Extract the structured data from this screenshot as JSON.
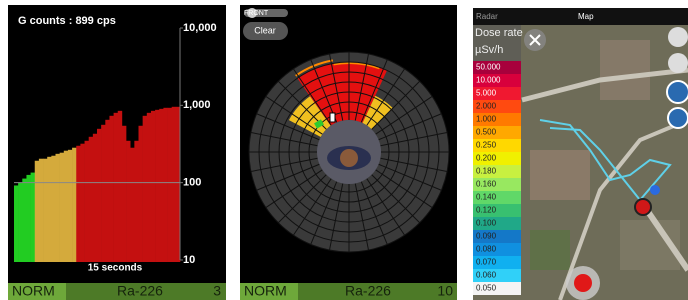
{
  "spectrum": {
    "title": "G counts : 899 cps",
    "x_label": "15 seconds",
    "yscale": "log",
    "ylim": [
      10,
      10000
    ],
    "yticks": [
      {
        "value": 10000,
        "label": "10,000"
      },
      {
        "value": 1000,
        "label": "1,000"
      },
      100,
      10
    ],
    "reference_line": 100,
    "values": [
      92,
      100,
      113,
      126,
      135,
      192,
      204,
      204,
      216,
      223,
      236,
      244,
      259,
      266,
      283,
      300,
      319,
      348,
      392,
      429,
      497,
      560,
      650,
      732,
      800,
      849,
      544,
      348,
      283,
      348,
      544,
      732,
      800,
      849,
      875,
      901,
      929,
      929,
      957,
      957
    ],
    "colors": [
      "#22cc22",
      "#22cc22",
      "#22cc22",
      "#22cc22",
      "#22cc22",
      "#d4aa3c",
      "#d4aa3c",
      "#d4aa3c",
      "#d4aa3c",
      "#d4aa3c",
      "#d4aa3c",
      "#d4aa3c",
      "#d4aa3c",
      "#d4aa3c",
      "#d4aa3c",
      "#c41010",
      "#c41010",
      "#c41010",
      "#c41010",
      "#c41010",
      "#c41010",
      "#c41010",
      "#c41010",
      "#c41010",
      "#c41010",
      "#c41010",
      "#c41010",
      "#c41010",
      "#c41010",
      "#c41010",
      "#c41010",
      "#c41010",
      "#c41010",
      "#c41010",
      "#c41010",
      "#c41010",
      "#c41010",
      "#c41010",
      "#c41010",
      "#c41010"
    ],
    "status": {
      "mode": "NORM",
      "isotope": "Ra-226",
      "count": 3
    }
  },
  "radar": {
    "slider_label": "FRONT",
    "button": "Clear",
    "status": {
      "mode": "NORM",
      "isotope": "Ra-226",
      "count": 10
    }
  },
  "map": {
    "tabs": [
      "Radar",
      "Map"
    ],
    "legend_title": "Dose rate",
    "unit": "µSv/h",
    "scale": [
      {
        "label": "50.000",
        "color": "#a8003c"
      },
      {
        "label": "10.000",
        "color": "#d8003c"
      },
      {
        "label": "5.000",
        "color": "#f01830"
      },
      {
        "label": "2.000",
        "color": "#ff4a10"
      },
      {
        "label": "1.000",
        "color": "#ff7a00"
      },
      {
        "label": "0.500",
        "color": "#ffa800"
      },
      {
        "label": "0.250",
        "color": "#ffd800"
      },
      {
        "label": "0.200",
        "color": "#f0f000"
      },
      {
        "label": "0.180",
        "color": "#c8f040"
      },
      {
        "label": "0.160",
        "color": "#98e860"
      },
      {
        "label": "0.140",
        "color": "#60d868"
      },
      {
        "label": "0.120",
        "color": "#38c070"
      },
      {
        "label": "0.100",
        "color": "#20a888"
      },
      {
        "label": "0.090",
        "color": "#1478c8"
      },
      {
        "label": "0.080",
        "color": "#1090e0"
      },
      {
        "label": "0.070",
        "color": "#10b0f0"
      },
      {
        "label": "0.060",
        "color": "#30d0f8"
      },
      {
        "label": "0.050",
        "color": "#f4f4f4"
      }
    ]
  }
}
